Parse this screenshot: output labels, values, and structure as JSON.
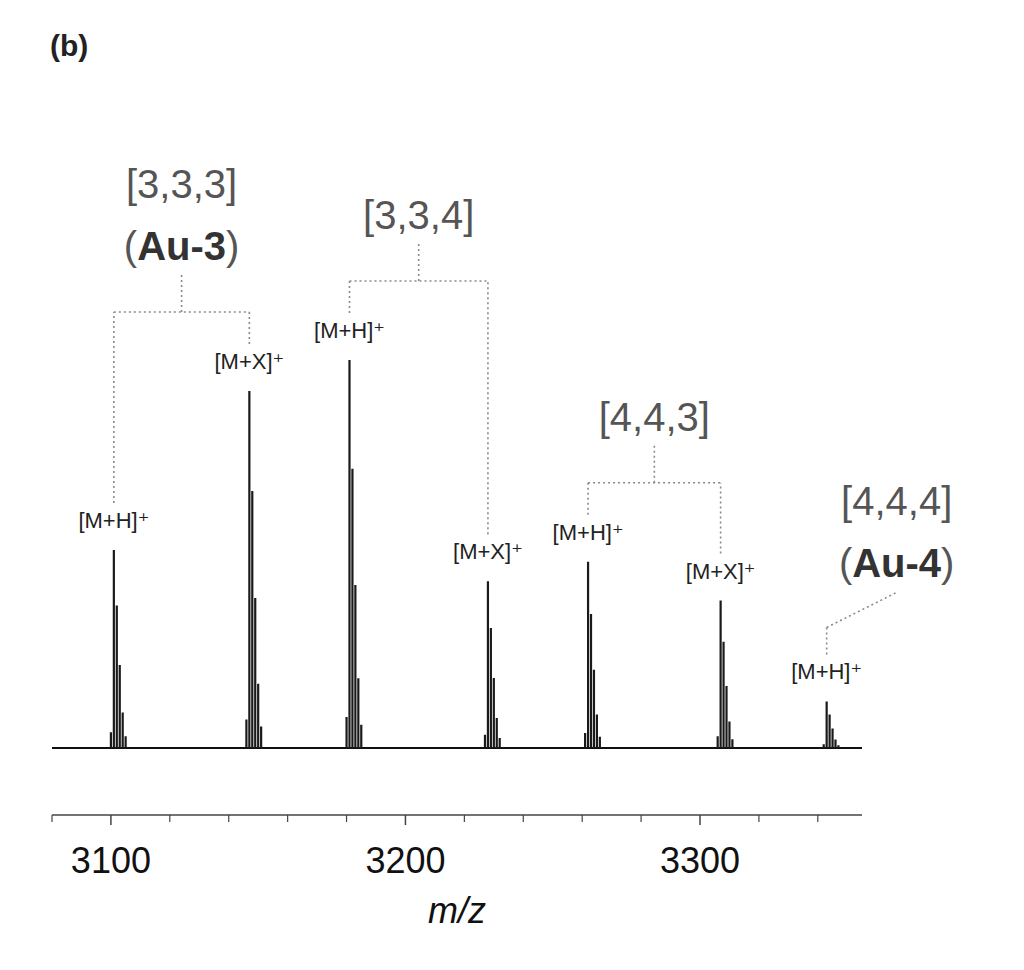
{
  "chart_data": {
    "type": "spectrum",
    "panel_label": "(b)",
    "x_label": "m/z",
    "xlim": [
      3080,
      3355
    ],
    "xticks": [
      3100,
      3200,
      3300
    ],
    "minor_xticks": [
      3080,
      3120,
      3140,
      3160,
      3180,
      3220,
      3240,
      3260,
      3280,
      3320,
      3340
    ],
    "ylim": [
      0,
      100
    ],
    "tick_labels": "x",
    "color": "#1a1a1a",
    "series": [
      {
        "name": "[3,3,3]",
        "compound": "(Au-3)",
        "x": [
          3101,
          3147
        ],
        "values": [
          51,
          92
        ],
        "ion_labels": [
          "[M+H]⁺",
          "[M+X]⁺"
        ]
      },
      {
        "name": "[3,3,4]",
        "x": [
          3181,
          3228
        ],
        "values": [
          100,
          43
        ],
        "ion_labels": [
          "[M+H]⁺",
          "[M+X]⁺"
        ]
      },
      {
        "name": "[4,4,3]",
        "x": [
          3262,
          3307
        ],
        "values": [
          48,
          38
        ],
        "ion_labels": [
          "[M+H]⁺",
          "[M+X]⁺"
        ]
      },
      {
        "name": "[4,4,4]",
        "compound": "(Au-4)",
        "x": [
          3343
        ],
        "values": [
          12
        ],
        "ion_labels": [
          "[M+H]⁺"
        ]
      }
    ]
  }
}
